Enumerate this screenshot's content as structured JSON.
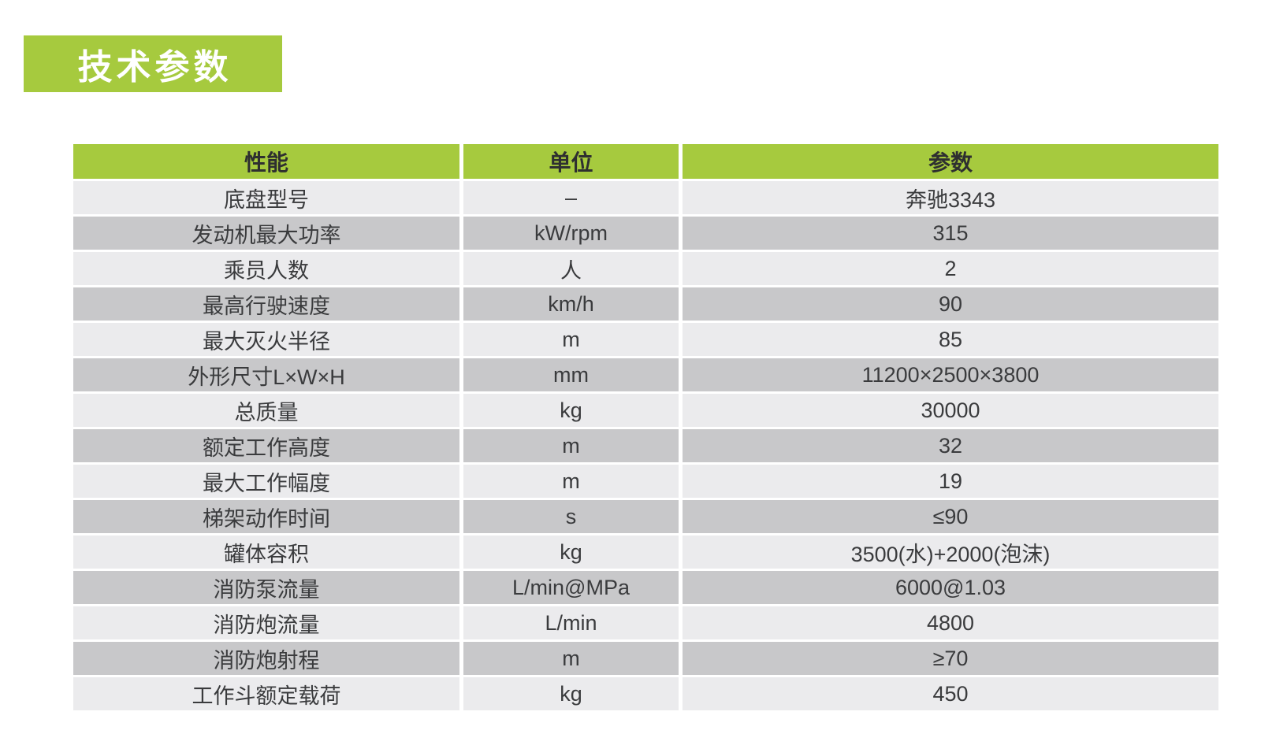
{
  "colors": {
    "accent_green": "#a6ca3e",
    "row_light": "#ebebed",
    "row_dark": "#c8c8ca",
    "header_text": "#2e2f30",
    "body_text": "#3a3b3d",
    "title_text": "#ffffff"
  },
  "title": {
    "label": "技术参数"
  },
  "table": {
    "columns": [
      "性能",
      "单位",
      "参数"
    ],
    "rows": [
      [
        "底盘型号",
        "–",
        "奔驰3343"
      ],
      [
        "发动机最大功率",
        "kW/rpm",
        "315"
      ],
      [
        "乘员人数",
        "人",
        "2"
      ],
      [
        "最高行驶速度",
        "km/h",
        "90"
      ],
      [
        "最大灭火半径",
        "m",
        "85"
      ],
      [
        "外形尺寸L×W×H",
        "mm",
        "11200×2500×3800"
      ],
      [
        "总质量",
        "kg",
        "30000"
      ],
      [
        "额定工作高度",
        "m",
        "32"
      ],
      [
        "最大工作幅度",
        "m",
        "19"
      ],
      [
        "梯架动作时间",
        "s",
        "≤90"
      ],
      [
        "罐体容积",
        "kg",
        "3500(水)+2000(泡沫)"
      ],
      [
        "消防泵流量",
        "L/min@MPa",
        "6000@1.03"
      ],
      [
        "消防炮流量",
        "L/min",
        "4800"
      ],
      [
        "消防炮射程",
        "m",
        "≥70"
      ],
      [
        "工作斗额定载荷",
        "kg",
        "450"
      ]
    ]
  }
}
